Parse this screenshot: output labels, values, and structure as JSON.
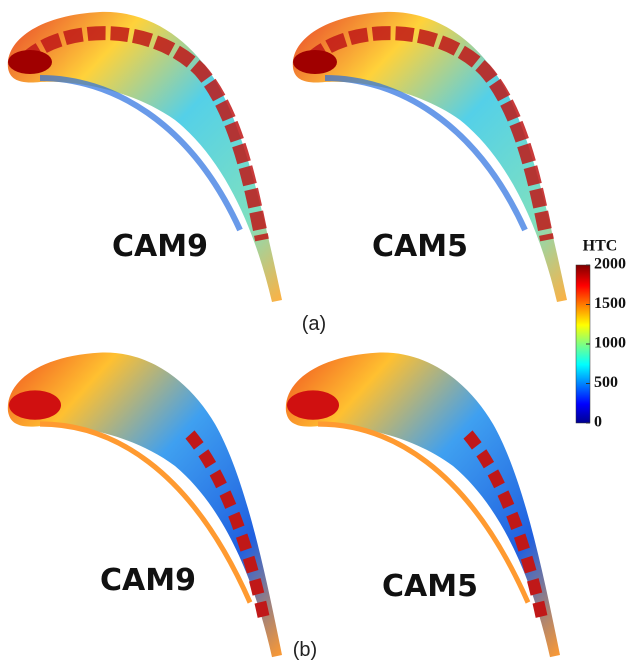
{
  "panels": [
    {
      "label": "(a)",
      "blades": [
        "CAM9",
        "CAM5"
      ]
    },
    {
      "label": "(b)",
      "blades": [
        "CAM9",
        "CAM5"
      ]
    }
  ],
  "colorbar": {
    "title": "HTC",
    "range": [
      0,
      2000
    ],
    "ticks": [
      0,
      500,
      1000,
      1500,
      2000
    ]
  }
}
